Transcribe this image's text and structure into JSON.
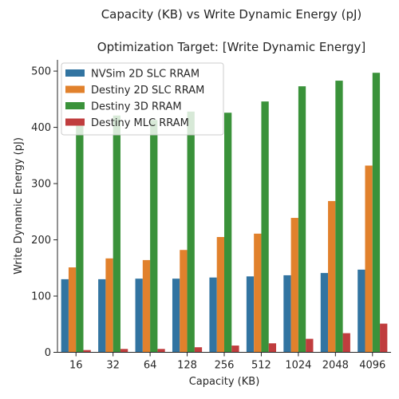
{
  "chart_data": {
    "type": "bar",
    "title": "Capacity (KB) vs Write Dynamic Energy (pJ)",
    "subtitle": "Optimization Target: [Write Dynamic Energy]",
    "xlabel": "Capacity (KB)",
    "ylabel": "Write Dynamic Energy (pJ)",
    "categories": [
      "16",
      "32",
      "64",
      "128",
      "256",
      "512",
      "1024",
      "2048",
      "4096"
    ],
    "ylim": [
      0,
      520
    ],
    "yticks": [
      0,
      100,
      200,
      300,
      400,
      500
    ],
    "legend_position": "top-left",
    "grid": false,
    "series": [
      {
        "name": "NVSim 2D SLC RRAM",
        "color": "#3274a1",
        "values": [
          130,
          130,
          131,
          131,
          133,
          135,
          137,
          141,
          147
        ]
      },
      {
        "name": "Destiny 2D SLC RRAM",
        "color": "#e1812c",
        "values": [
          151,
          167,
          164,
          182,
          205,
          211,
          239,
          269,
          332
        ]
      },
      {
        "name": "Destiny 3D RRAM",
        "color": "#3a923a",
        "values": [
          415,
          421,
          413,
          428,
          426,
          446,
          473,
          483,
          497
        ]
      },
      {
        "name": "Destiny MLC RRAM",
        "color": "#c03d3e",
        "values": [
          4,
          6,
          6,
          9,
          12,
          16,
          24,
          34,
          51
        ]
      }
    ]
  }
}
